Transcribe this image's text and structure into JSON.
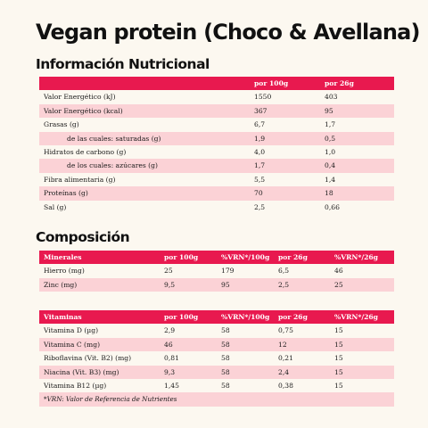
{
  "title": "Vegan protein (Choco & Avellana)",
  "nutrition": {
    "heading": "Información Nutricional",
    "columns": [
      "",
      "por 100g",
      "por 26g"
    ],
    "rows": [
      {
        "label": "Valor Energético (kJ)",
        "per100": "1550",
        "per26": "403",
        "indent": false
      },
      {
        "label": "Valor Energético (kcal)",
        "per100": "367",
        "per26": "95",
        "indent": false
      },
      {
        "label": "Grasas (g)",
        "per100": "6,7",
        "per26": "1,7",
        "indent": false
      },
      {
        "label": "de las cuales: saturadas (g)",
        "per100": "1,9",
        "per26": "0,5",
        "indent": true
      },
      {
        "label": "Hidratos de carbono (g)",
        "per100": "4,0",
        "per26": "1,0",
        "indent": false
      },
      {
        "label": "de los cuales: azúcares (g)",
        "per100": "1,7",
        "per26": "0,4",
        "indent": true
      },
      {
        "label": "Fibra alimentaria (g)",
        "per100": "5,5",
        "per26": "1,4",
        "indent": false
      },
      {
        "label": "Proteínas (g)",
        "per100": "70",
        "per26": "18",
        "indent": false
      },
      {
        "label": "Sal (g)",
        "per100": "2,5",
        "per26": "0,66",
        "indent": false
      }
    ]
  },
  "composition": {
    "heading": "Composición",
    "minerals": {
      "columns": [
        "Minerales",
        "por 100g",
        "%VRN*/100g",
        "por 26g",
        "%VRN*/26g"
      ],
      "rows": [
        [
          "Hierro (mg)",
          "25",
          "179",
          "6,5",
          "46"
        ],
        [
          "Zinc (mg)",
          "9,5",
          "95",
          "2,5",
          "25"
        ]
      ]
    },
    "vitamins": {
      "columns": [
        "Vitaminas",
        "por 100g",
        "%VRN*/100g",
        "por 26g",
        "%VRN*/26g"
      ],
      "rows": [
        [
          "Vitamina D (µg)",
          "2,9",
          "58",
          "0,75",
          "15"
        ],
        [
          "Vitamina C (mg)",
          "46",
          "58",
          "12",
          "15"
        ],
        [
          "Riboflavina (Vit. B2) (mg)",
          "0,81",
          "58",
          "0,21",
          "15"
        ],
        [
          "Niacina (Vit. B3) (mg)",
          "9,3",
          "58",
          "2,4",
          "15"
        ],
        [
          "Vitamina B12 (µg)",
          "1,45",
          "58",
          "0,38",
          "15"
        ]
      ]
    },
    "footnote": "*VRN: Valor de Referencia de Nutrientes"
  }
}
